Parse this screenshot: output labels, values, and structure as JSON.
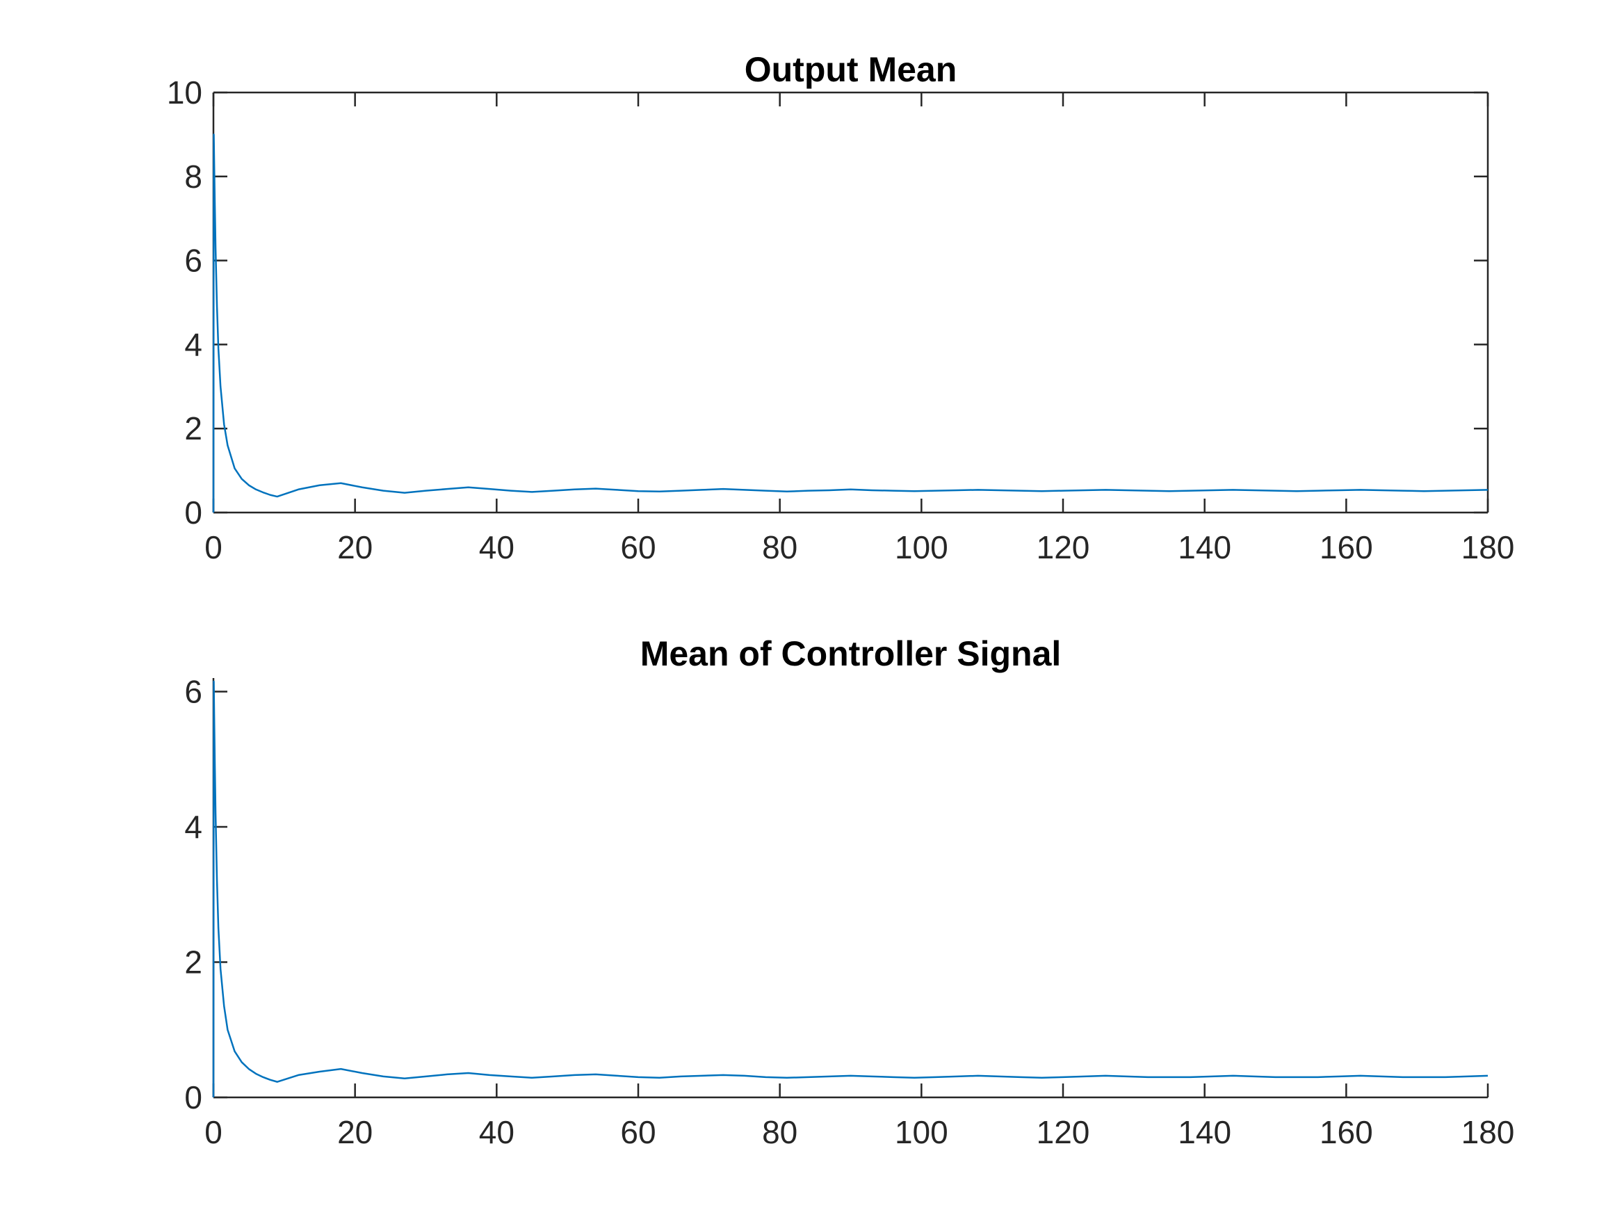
{
  "chart_data": [
    {
      "type": "line",
      "title": "Output Mean",
      "xlabel": "",
      "ylabel": "",
      "xlim": [
        0,
        180
      ],
      "ylim": [
        0,
        10
      ],
      "xticks": [
        0,
        20,
        40,
        60,
        80,
        100,
        120,
        140,
        160,
        180
      ],
      "yticks": [
        0,
        2,
        4,
        6,
        8,
        10
      ],
      "xtick_labels": [
        "0",
        "20",
        "40",
        "60",
        "80",
        "100",
        "120",
        "140",
        "160",
        "180"
      ],
      "ytick_labels": [
        "0",
        "2",
        "4",
        "6",
        "8",
        "10"
      ],
      "grid": false,
      "box": true,
      "line_color": "#0072bd",
      "series": [
        {
          "x": [
            0,
            0.05,
            0.1,
            0.2,
            0.3,
            0.5,
            0.7,
            1,
            1.5,
            2,
            3,
            4,
            5,
            6,
            7,
            8,
            9,
            12,
            15,
            18,
            21,
            24,
            27,
            30,
            33,
            36,
            39,
            42,
            45,
            48,
            51,
            54,
            57,
            60,
            63,
            66,
            69,
            72,
            75,
            78,
            81,
            84,
            87,
            90,
            93,
            96,
            99,
            102,
            105,
            108,
            111,
            114,
            117,
            120,
            123,
            126,
            129,
            132,
            135,
            138,
            141,
            144,
            147,
            150,
            153,
            156,
            159,
            162,
            165,
            168,
            171,
            174,
            177,
            180
          ],
          "values": [
            0,
            9.0,
            8.4,
            7.3,
            6.3,
            4.9,
            3.9,
            3.0,
            2.1,
            1.6,
            1.05,
            0.8,
            0.65,
            0.55,
            0.48,
            0.42,
            0.38,
            0.55,
            0.65,
            0.7,
            0.6,
            0.52,
            0.47,
            0.52,
            0.56,
            0.6,
            0.56,
            0.52,
            0.49,
            0.52,
            0.55,
            0.57,
            0.54,
            0.51,
            0.5,
            0.52,
            0.54,
            0.56,
            0.54,
            0.52,
            0.5,
            0.52,
            0.53,
            0.55,
            0.53,
            0.52,
            0.51,
            0.52,
            0.53,
            0.54,
            0.53,
            0.52,
            0.51,
            0.52,
            0.53,
            0.54,
            0.53,
            0.52,
            0.51,
            0.52,
            0.53,
            0.54,
            0.53,
            0.52,
            0.51,
            0.52,
            0.53,
            0.54,
            0.53,
            0.52,
            0.51,
            0.52,
            0.53,
            0.54
          ]
        }
      ]
    },
    {
      "type": "line",
      "title": "Mean of Controller Signal",
      "xlabel": "",
      "ylabel": "",
      "xlim": [
        0,
        180
      ],
      "ylim": [
        0,
        6.2
      ],
      "xticks": [
        0,
        20,
        40,
        60,
        80,
        100,
        120,
        140,
        160,
        180
      ],
      "yticks": [
        0,
        2,
        4,
        6
      ],
      "xtick_labels": [
        "0",
        "20",
        "40",
        "60",
        "80",
        "100",
        "120",
        "140",
        "160",
        "180"
      ],
      "ytick_labels": [
        "0",
        "2",
        "4",
        "6"
      ],
      "grid": false,
      "box": false,
      "line_color": "#0072bd",
      "series": [
        {
          "x": [
            0,
            0.05,
            0.1,
            0.2,
            0.3,
            0.5,
            0.7,
            1,
            1.5,
            2,
            3,
            4,
            5,
            6,
            7,
            8,
            9,
            12,
            15,
            18,
            21,
            24,
            27,
            30,
            33,
            36,
            39,
            42,
            45,
            48,
            51,
            54,
            57,
            60,
            63,
            66,
            69,
            72,
            75,
            78,
            81,
            84,
            87,
            90,
            93,
            96,
            99,
            102,
            105,
            108,
            111,
            114,
            117,
            120,
            123,
            126,
            129,
            132,
            135,
            138,
            141,
            144,
            147,
            150,
            153,
            156,
            159,
            162,
            165,
            168,
            171,
            174,
            177,
            180
          ],
          "values": [
            0,
            6.15,
            5.7,
            4.9,
            4.2,
            3.2,
            2.5,
            1.9,
            1.35,
            1.0,
            0.68,
            0.52,
            0.42,
            0.35,
            0.3,
            0.26,
            0.23,
            0.33,
            0.38,
            0.42,
            0.36,
            0.31,
            0.28,
            0.31,
            0.34,
            0.36,
            0.33,
            0.31,
            0.29,
            0.31,
            0.33,
            0.34,
            0.32,
            0.3,
            0.29,
            0.31,
            0.32,
            0.33,
            0.32,
            0.3,
            0.29,
            0.3,
            0.31,
            0.32,
            0.31,
            0.3,
            0.29,
            0.3,
            0.31,
            0.32,
            0.31,
            0.3,
            0.29,
            0.3,
            0.31,
            0.32,
            0.31,
            0.3,
            0.3,
            0.3,
            0.31,
            0.32,
            0.31,
            0.3,
            0.3,
            0.3,
            0.31,
            0.32,
            0.31,
            0.3,
            0.3,
            0.3,
            0.31,
            0.32
          ]
        }
      ]
    }
  ]
}
